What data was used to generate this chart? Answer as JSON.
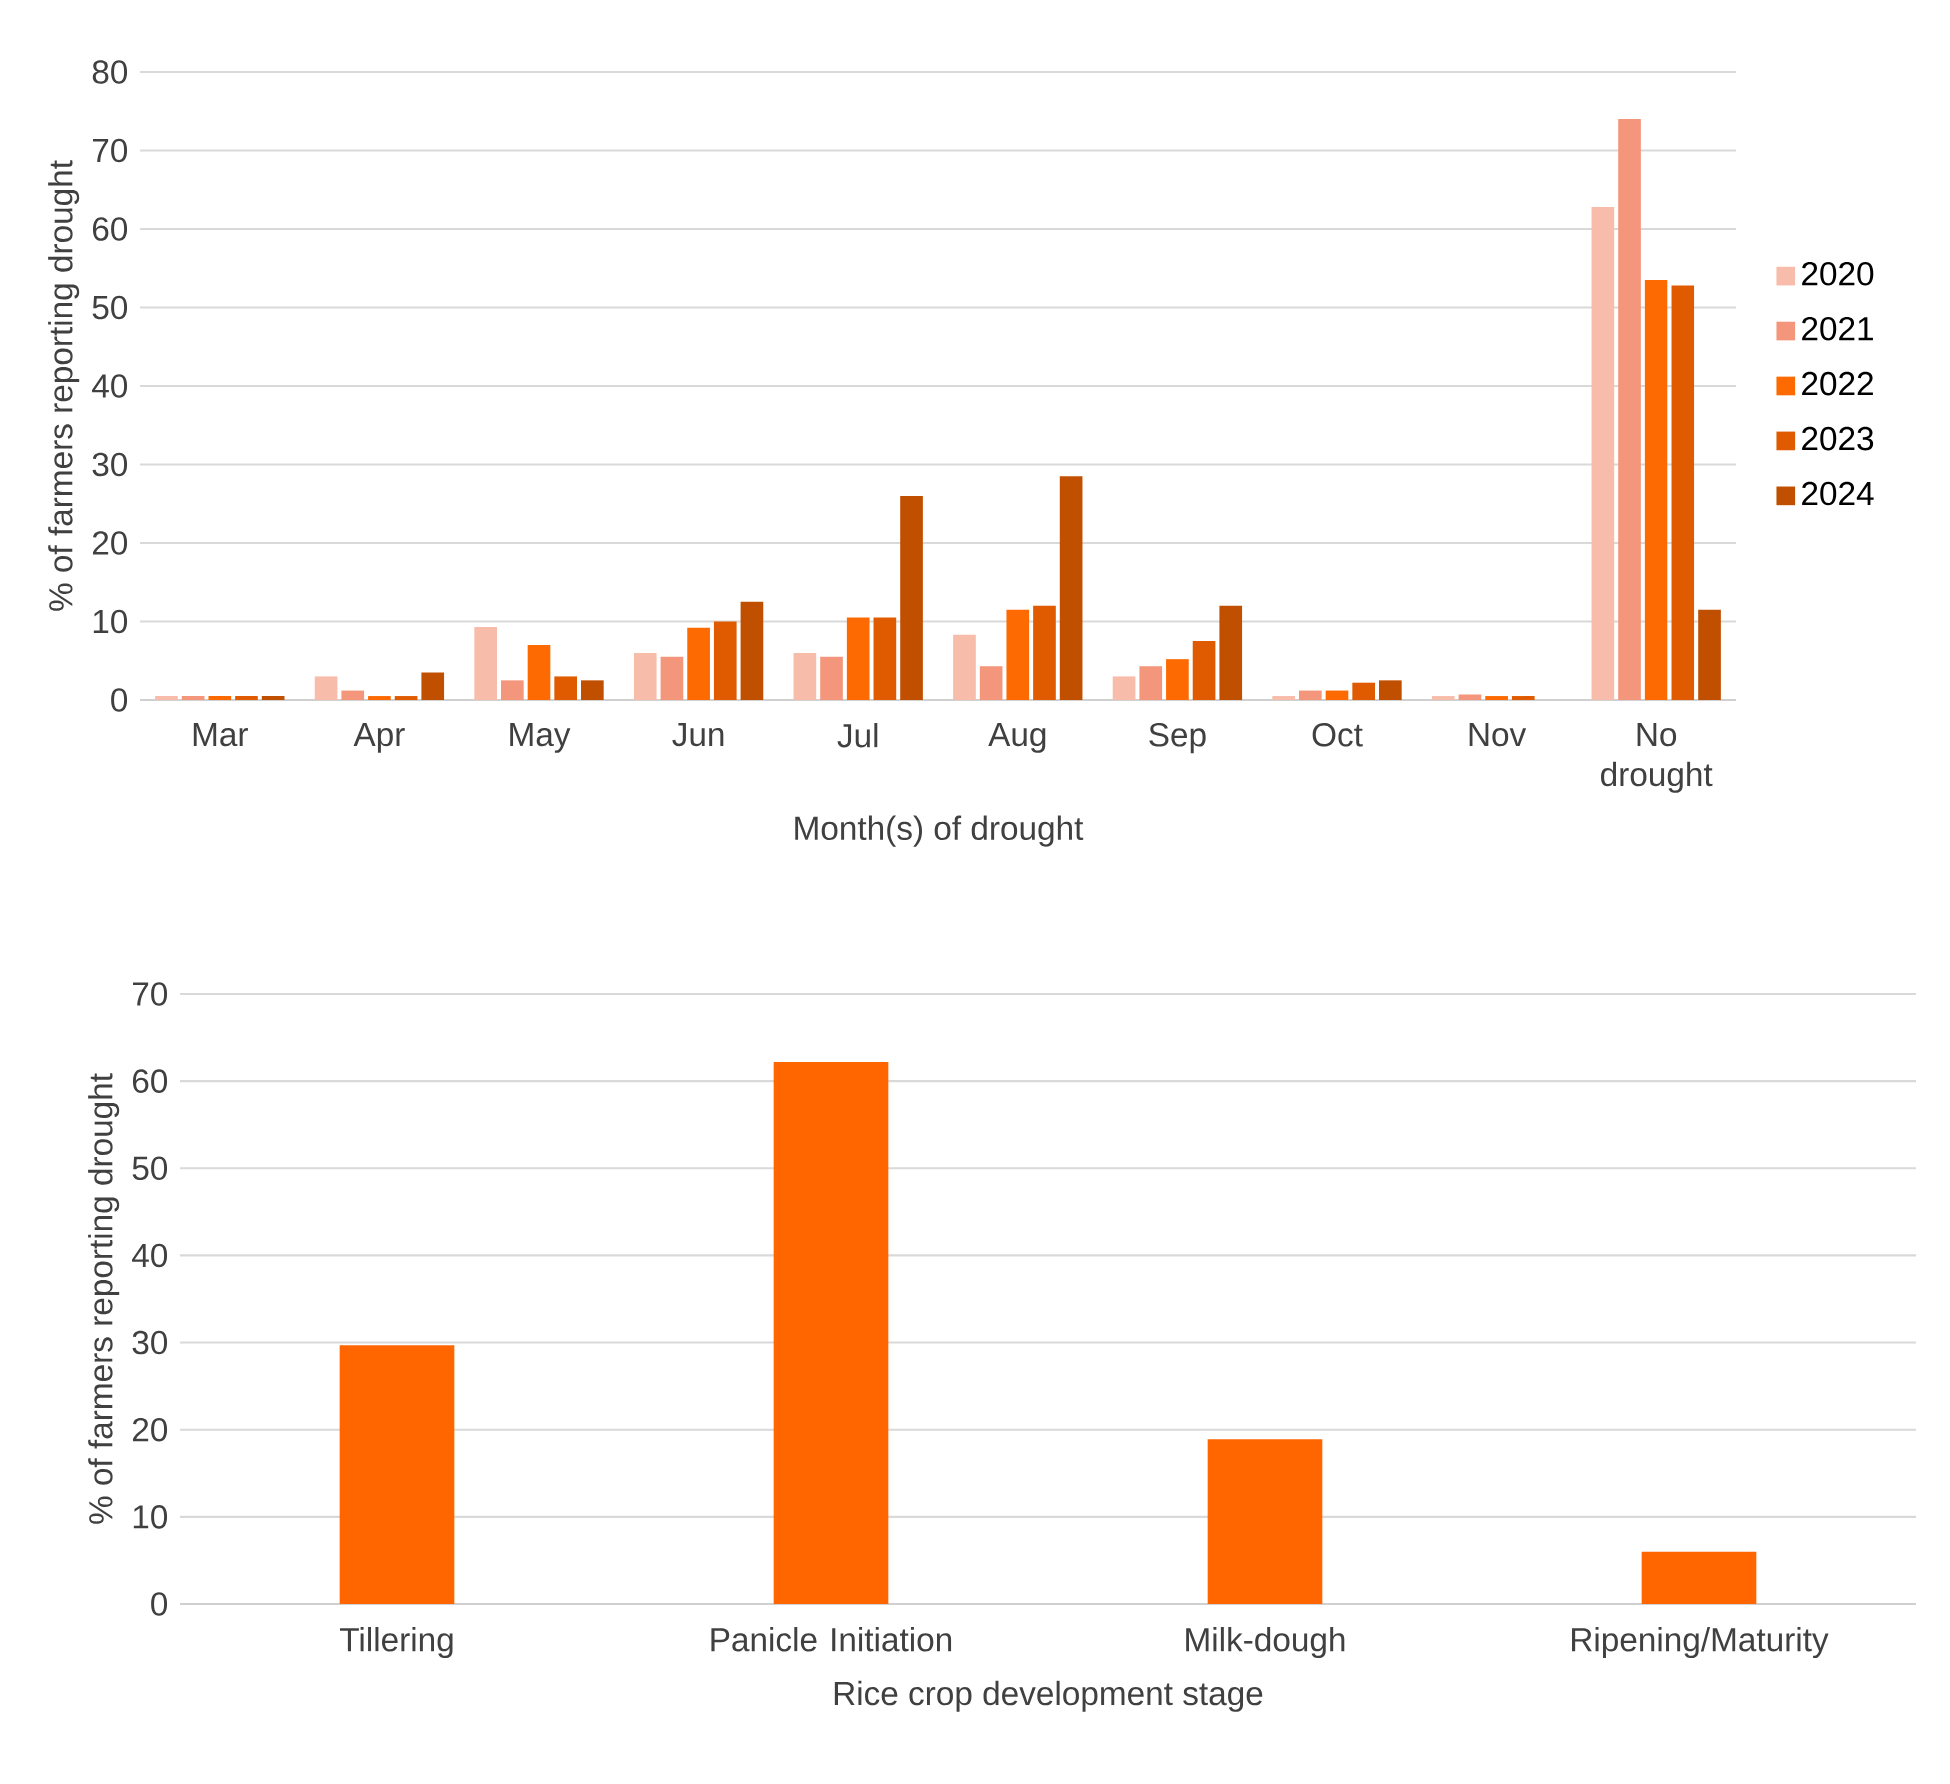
{
  "chart_data": [
    {
      "type": "bar",
      "xlabel": "Month(s) of drought",
      "ylabel": "% of farmers reporting drought",
      "categories": [
        "Mar",
        "Apr",
        "May",
        "Jun",
        "Jul",
        "Aug",
        "Sep",
        "Oct",
        "Nov",
        "No drought"
      ],
      "series": [
        {
          "name": "2020",
          "color": "#f8bcaa",
          "values": [
            0.5,
            3,
            9.3,
            6,
            6,
            8.3,
            3,
            0.5,
            0.5,
            62.8
          ]
        },
        {
          "name": "2021",
          "color": "#f4967c",
          "values": [
            0.5,
            1.2,
            2.5,
            5.5,
            5.5,
            4.3,
            4.3,
            1.2,
            0.7,
            74
          ]
        },
        {
          "name": "2022",
          "color": "#fd6a02",
          "values": [
            0.5,
            0.5,
            7,
            9.2,
            10.5,
            11.5,
            5.2,
            1.2,
            0.5,
            53.5
          ]
        },
        {
          "name": "2023",
          "color": "#e05a00",
          "values": [
            0.5,
            0.5,
            3,
            10,
            10.5,
            12,
            7.5,
            2.2,
            0.5,
            52.8
          ]
        },
        {
          "name": "2024",
          "color": "#c04f00",
          "values": [
            0.5,
            3.5,
            2.5,
            12.5,
            26,
            28.5,
            12,
            2.5,
            null,
            11.5
          ]
        }
      ],
      "ylim": [
        0,
        80
      ],
      "yticks": [
        0,
        10,
        20,
        30,
        40,
        50,
        60,
        70,
        80
      ],
      "grid": "y",
      "legend": "right"
    },
    {
      "type": "bar",
      "xlabel": "Rice crop development stage",
      "ylabel": "% of farmers reporting drought",
      "categories": [
        "Tillering",
        "Panicle Initiation",
        "Milk-dough",
        "Ripening/Maturity"
      ],
      "values": [
        29.7,
        62.2,
        18.9,
        6.0
      ],
      "color": "#ff6600",
      "ylim": [
        0,
        70
      ],
      "yticks": [
        0,
        10,
        20,
        30,
        40,
        50,
        60,
        70
      ],
      "grid": "y"
    }
  ]
}
